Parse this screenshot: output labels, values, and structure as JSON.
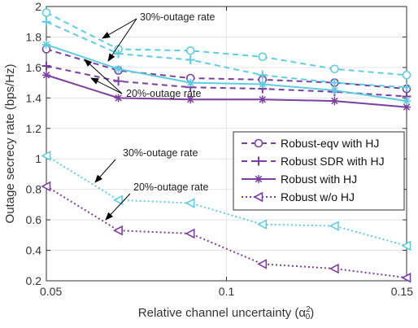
{
  "chart_data": {
    "type": "line",
    "xlabel_main": "Relative channel uncertainty (",
    "xlabel_symbol": "α",
    "xlabel_sup": "2",
    "xlabel_sub": "0",
    "xlabel_close": ")",
    "ylabel": "Outage secrecy rate (bps/Hz)",
    "xlim": [
      0.05,
      0.15
    ],
    "ylim": [
      0.2,
      2
    ],
    "xticks": [
      0.05,
      0.1,
      0.15
    ],
    "xtick_labels": [
      "0.05",
      "0.1",
      "0.15"
    ],
    "yticks": [
      0.2,
      0.4,
      0.6,
      0.8,
      1,
      1.2,
      1.4,
      1.6,
      1.8,
      2
    ],
    "ytick_labels": [
      "0.2",
      "0.4",
      "0.6",
      "0.8",
      "1",
      "1.2",
      "1.4",
      "1.6",
      "1.8",
      "2"
    ],
    "grid": true,
    "x": [
      0.05,
      0.07,
      0.09,
      0.11,
      0.13,
      0.15
    ],
    "series": [
      {
        "name": "Robust-eqv with HJ",
        "legend": true,
        "color": "#7B3FA0",
        "dash": "7,5",
        "marker": "circle",
        "values": [
          1.72,
          1.58,
          1.53,
          1.52,
          1.5,
          1.46
        ]
      },
      {
        "name": "Robust SDR with HJ",
        "legend": true,
        "color": "#7B3FA0",
        "dash": "7,5",
        "marker": "plus",
        "values": [
          1.61,
          1.51,
          1.47,
          1.46,
          1.44,
          1.41
        ]
      },
      {
        "name": "Robust with HJ",
        "legend": true,
        "color": "#7B3FA0",
        "dash": "",
        "marker": "star",
        "values": [
          1.55,
          1.4,
          1.39,
          1.39,
          1.38,
          1.34
        ]
      },
      {
        "name": "Robust w/o HJ",
        "legend": true,
        "color": "#7B3FA0",
        "dash": "2,3",
        "marker": "triangle",
        "values": [
          0.82,
          0.53,
          0.51,
          0.31,
          0.28,
          0.22
        ]
      },
      {
        "name": "",
        "legend": false,
        "color": "#5FCDE0",
        "dash": "7,5",
        "marker": "circle",
        "values": [
          1.96,
          1.72,
          1.71,
          1.67,
          1.59,
          1.55
        ]
      },
      {
        "name": "",
        "legend": false,
        "color": "#5FCDE0",
        "dash": "7,5",
        "marker": "plus",
        "values": [
          1.9,
          1.69,
          1.65,
          1.55,
          1.5,
          1.47
        ]
      },
      {
        "name": "",
        "legend": false,
        "color": "#5FCDE0",
        "dash": "",
        "marker": "star",
        "values": [
          1.75,
          1.59,
          1.5,
          1.49,
          1.45,
          1.38
        ]
      },
      {
        "name": "",
        "legend": false,
        "color": "#5FCDE0",
        "dash": "2,3",
        "marker": "triangle",
        "values": [
          1.02,
          0.73,
          0.71,
          0.57,
          0.56,
          0.43
        ]
      }
    ],
    "annotations": [
      {
        "text": "30%-outage rate"
      },
      {
        "text": "20%-outage rate"
      },
      {
        "text": "30%-outage rate"
      },
      {
        "text": "20%-outage rate"
      }
    ],
    "legend_position": "center-right"
  }
}
